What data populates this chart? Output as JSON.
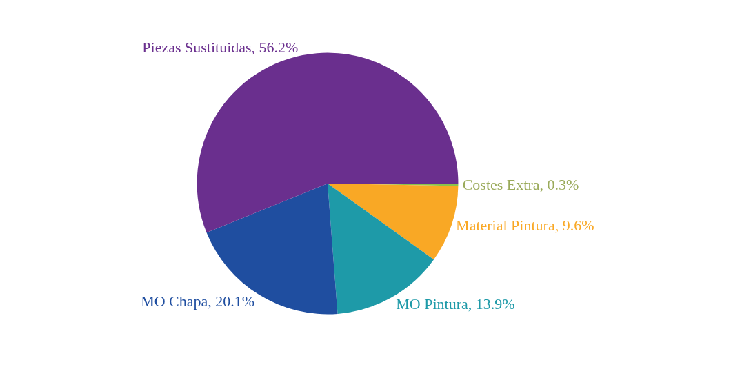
{
  "chart_data": {
    "type": "pie",
    "categories": [
      "Costes Extra, 0.3%",
      "Material Pintura, 9.6%",
      "MO Pintura, 13.9%",
      "MO Chapa, 20.1%",
      "Piezas Sustituidas, 56.2%"
    ],
    "values": [
      0.3,
      9.6,
      13.9,
      20.1,
      56.2
    ],
    "colors": [
      "#8bc34a",
      "#f9a825",
      "#1e9aa8",
      "#1f4ea0",
      "#6a2f8e"
    ],
    "legend": false
  }
}
